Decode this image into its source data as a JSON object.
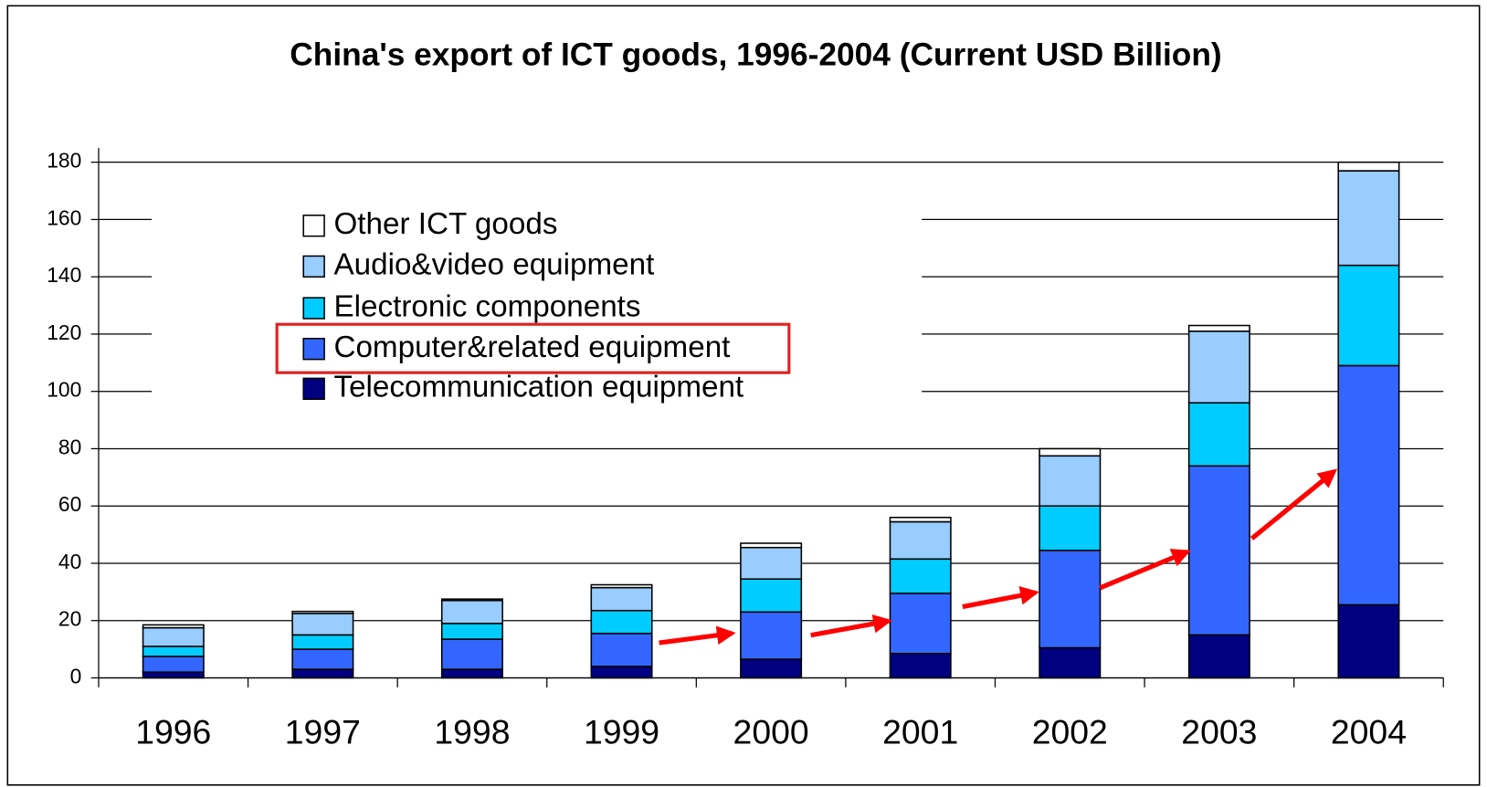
{
  "chart_data": {
    "type": "stacked-bar",
    "title": "China's export of ICT goods, 1996-2004 (Current USD Billion)",
    "categories": [
      "1996",
      "1997",
      "1998",
      "1999",
      "2000",
      "2001",
      "2002",
      "2003",
      "2004"
    ],
    "series": [
      {
        "name": "Telecommunication equipment",
        "color": "#000080",
        "values": [
          2,
          3,
          3,
          4,
          6.5,
          8.5,
          10.5,
          15,
          25.5
        ]
      },
      {
        "name": "Computer&related equipment",
        "color": "#3366ff",
        "values": [
          5.5,
          7,
          10.5,
          11.5,
          16.5,
          21,
          34,
          59,
          83.5
        ]
      },
      {
        "name": "Electronic components",
        "color": "#00ccff",
        "values": [
          3.5,
          5,
          5.5,
          8,
          11.5,
          12,
          15.5,
          22,
          35
        ]
      },
      {
        "name": "Audio&video equipment",
        "color": "#99ccff",
        "values": [
          6.5,
          7.5,
          8,
          8,
          11,
          13,
          17.5,
          25,
          33
        ]
      },
      {
        "name": "Other ICT goods",
        "color": "#ffffff",
        "values": [
          1,
          0.7,
          0.5,
          1,
          1.5,
          1.5,
          2.5,
          2,
          3
        ]
      }
    ],
    "ylim": [
      0,
      180
    ],
    "yticks": [
      0,
      20,
      40,
      60,
      80,
      100,
      120,
      140,
      160,
      180
    ],
    "grid": true
  }
}
